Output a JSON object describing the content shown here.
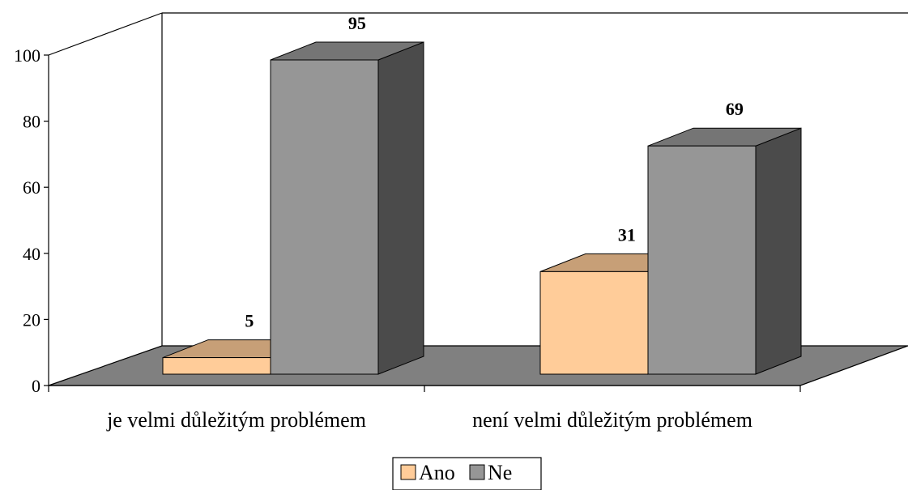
{
  "chart_data": {
    "type": "bar",
    "style": "3d-clustered-column",
    "categories": [
      "je velmi důležitým problémem",
      "není velmi důležitým problémem"
    ],
    "series": [
      {
        "name": "Ano",
        "values": [
          5,
          31
        ],
        "color": "#FFCC99"
      },
      {
        "name": "Ne",
        "values": [
          95,
          69
        ],
        "color": "#969696"
      }
    ],
    "y_ticks": [
      0,
      20,
      40,
      60,
      80,
      100
    ],
    "ylim": [
      0,
      100
    ],
    "grid": false,
    "legend_position": "bottom",
    "floor_color": "#808080",
    "data_labels": true
  }
}
